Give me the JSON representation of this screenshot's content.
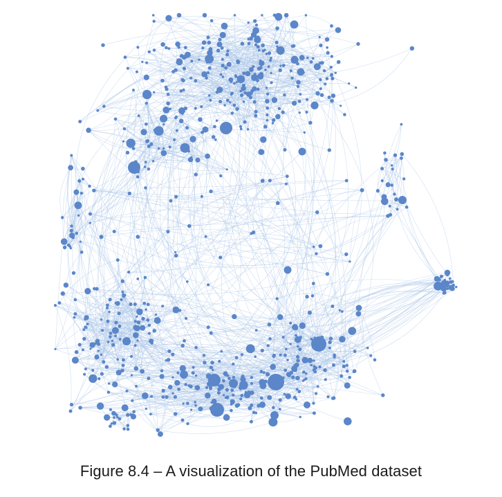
{
  "figure": {
    "caption": "Figure 8.4 – A visualization of the PubMed dataset",
    "colors": {
      "node": "#5b86c9",
      "edge": "#a9c4e8",
      "background": "#ffffff"
    }
  }
}
